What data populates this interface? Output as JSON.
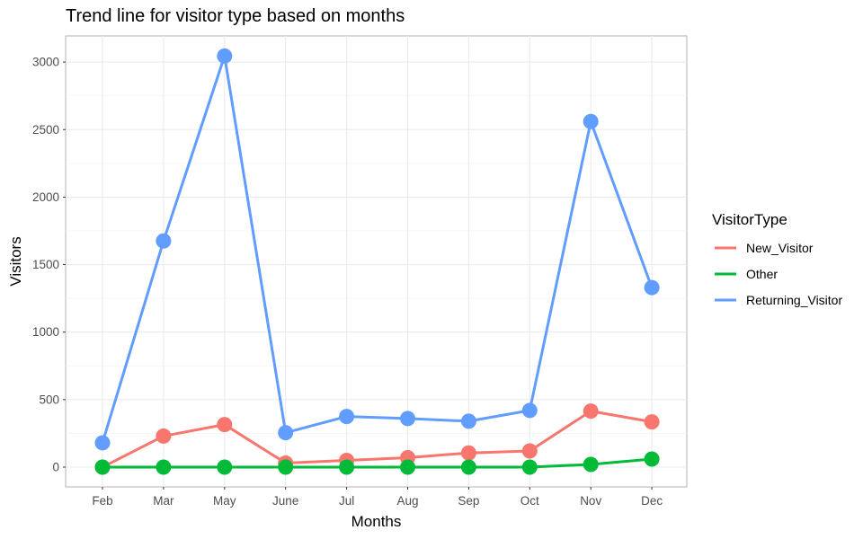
{
  "chart_data": {
    "type": "line",
    "title": "Trend line for visitor type based on months",
    "xlabel": "Months",
    "ylabel": "Visitors",
    "categories": [
      "Feb",
      "Mar",
      "May",
      "June",
      "Jul",
      "Aug",
      "Sep",
      "Oct",
      "Nov",
      "Dec"
    ],
    "ylim": [
      -150,
      3200
    ],
    "yticks": [
      0,
      500,
      1000,
      1500,
      2000,
      2500,
      3000
    ],
    "grid": true,
    "legend": {
      "title": "VisitorType",
      "position": "right"
    },
    "series": [
      {
        "name": "New_Visitor",
        "color": "#F8766D",
        "values": [
          0,
          230,
          315,
          30,
          50,
          70,
          105,
          120,
          415,
          335
        ]
      },
      {
        "name": "Other",
        "color": "#00BA38",
        "values": [
          0,
          0,
          0,
          0,
          0,
          0,
          0,
          0,
          20,
          60
        ]
      },
      {
        "name": "Returning_Visitor",
        "color": "#619CFF",
        "values": [
          180,
          1675,
          3045,
          255,
          375,
          360,
          340,
          420,
          2560,
          1330
        ]
      }
    ]
  }
}
